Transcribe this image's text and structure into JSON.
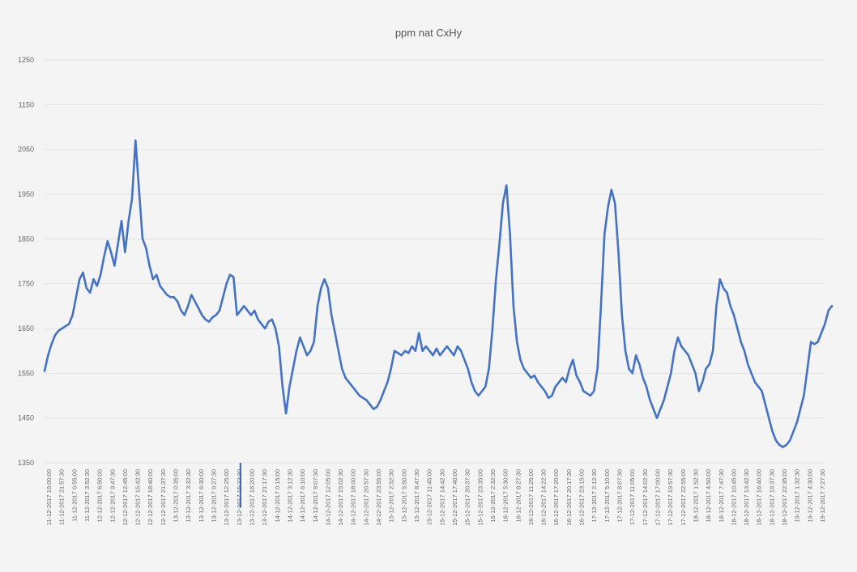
{
  "chart_data": {
    "type": "line",
    "title": "ppm nat CxHy",
    "xlabel": "",
    "ylabel": "",
    "ylim": [
      1350,
      1250
    ],
    "yticks": [
      "1250",
      "1150",
      "2050",
      "1950",
      "1850",
      "1750",
      "1650",
      "1550",
      "1450",
      "1350"
    ],
    "grid": true,
    "legend": "none",
    "colors": {
      "line": "#4472c4",
      "marker": "#3a5fb4",
      "grid": "#e3e3e3",
      "background": "#f4f4f4"
    },
    "xlabels": [
      "11-12-2017 19:00:00",
      "11-12-2017 21:57:30",
      "11-12-2017 0:55:00",
      "11-12-2017 3:52:30",
      "12-12-2017 6:50:00",
      "12-12-2017 9:47:30",
      "12-12-2017 12:45:00",
      "12-12-2017 15:42:30",
      "12-12-2017 18:40:00",
      "12-12-2017 21:37:30",
      "13-12-2017 0:35:00",
      "13-12-2017 3:32:30",
      "13-12-2017 6:30:00",
      "13-12-2017 9:27:30",
      "13-12-2017 12:25:00",
      "13-12-2017 15:22:30",
      "13-12-2017 18:20:00",
      "13-12-2017 21:17:30",
      "14-12-2017 0:15:00",
      "14-12-2017 3:12:30",
      "14-12-2017 6:10:00",
      "14-12-2017 9:07:30",
      "14-12-2017 12:05:00",
      "14-12-2017 15:02:30",
      "14-12-2017 18:00:00",
      "14-12-2017 20:57:30",
      "14-12-2017 23:55:00",
      "15-12-2017 2:52:30",
      "15-12-2017 5:50:00",
      "15-12-2017 8:47:30",
      "15-12-2017 11:45:00",
      "15-12-2017 14:42:30",
      "15-12-2017 17:40:00",
      "15-12-2017 20:37:30",
      "15-12-2017 23:35:00",
      "16-12-2017 2:32:30",
      "16-12-2017 5:30:00",
      "16-12-2017 8:27:30",
      "16-12-2017 11:25:00",
      "16-12-2017 14:22:30",
      "16-12-2017 17:20:00",
      "16-12-2017 20:17:30",
      "16-12-2017 23:15:00",
      "17-12-2017 2:12:30",
      "17-12-2017 5:10:00",
      "17-12-2017 8:07:30",
      "17-12-2017 11:05:00",
      "17-12-2017 14:02:30",
      "17-12-2017 17:00:00",
      "17-12-2017 19:57:30",
      "17-12-2017 22:55:00",
      "18-12-2017 1:52:30",
      "18-12-2017 4:50:00",
      "18-12-2017 7:47:30",
      "18-12-2017 10:45:00",
      "18-12-2017 13:42:30",
      "18-12-2017 16:40:00",
      "18-12-2017 19:37:30",
      "18-12-2017 22:35:00",
      "19-12-2017 1:32:30",
      "19-12-2017 4:30:00",
      "19-12-2017 7:27:30"
    ],
    "series": [
      {
        "values": [
          1555,
          1590,
          1615,
          1635,
          1645,
          1650,
          1655,
          1660,
          1680,
          1720,
          1760,
          1775,
          1740,
          1730,
          1760,
          1745,
          1770,
          1810,
          1845,
          1820,
          1790,
          1840,
          1890,
          1820,
          1890,
          1940,
          2070,
          1960,
          1850,
          1830,
          1790,
          1760,
          1770,
          1745,
          1735,
          1725,
          1720,
          1720,
          1710,
          1690,
          1680,
          1700,
          1725,
          1710,
          1695,
          1680,
          1670,
          1665,
          1675,
          1680,
          1690,
          1720,
          1750,
          1770,
          1765,
          1680,
          1690,
          1700,
          1690,
          1680,
          1690,
          1670,
          1660,
          1650,
          1665,
          1670,
          1650,
          1610,
          1520,
          1460,
          1520,
          1560,
          1600,
          1630,
          1610,
          1590,
          1600,
          1620,
          1700,
          1740,
          1760,
          1740,
          1680,
          1640,
          1600,
          1560,
          1540,
          1530,
          1520,
          1510,
          1500,
          1495,
          1490,
          1480,
          1470,
          1475,
          1490,
          1510,
          1530,
          1560,
          1600,
          1595,
          1590,
          1600,
          1595,
          1610,
          1600,
          1640,
          1600,
          1610,
          1600,
          1590,
          1605,
          1590,
          1600,
          1610,
          1600,
          1590,
          1610,
          1600,
          1580,
          1560,
          1530,
          1510,
          1500,
          1510,
          1520,
          1560,
          1650,
          1760,
          1840,
          1930,
          1970,
          1860,
          1700,
          1620,
          1580,
          1560,
          1550,
          1540,
          1545,
          1530,
          1520,
          1510,
          1495,
          1500,
          1520,
          1530,
          1540,
          1530,
          1560,
          1580,
          1545,
          1530,
          1510,
          1505,
          1500,
          1510,
          1560,
          1700,
          1860,
          1920,
          1960,
          1930,
          1820,
          1680,
          1600,
          1560,
          1550,
          1590,
          1570,
          1540,
          1520,
          1490,
          1470,
          1450,
          1470,
          1490,
          1520,
          1550,
          1600,
          1630,
          1610,
          1600,
          1590,
          1570,
          1550,
          1510,
          1530,
          1560,
          1570,
          1600,
          1700,
          1760,
          1740,
          1730,
          1700,
          1680,
          1650,
          1620,
          1600,
          1570,
          1550,
          1530,
          1520,
          1510,
          1480,
          1450,
          1420,
          1400,
          1390,
          1385,
          1390,
          1400,
          1420,
          1440,
          1470,
          1500,
          1560,
          1620,
          1615,
          1620,
          1640,
          1660,
          1690,
          1700
        ]
      }
    ],
    "vertical_marker": {
      "x_label": "13-12-2017 15:22:30",
      "from": 1250,
      "to": 1350
    }
  }
}
